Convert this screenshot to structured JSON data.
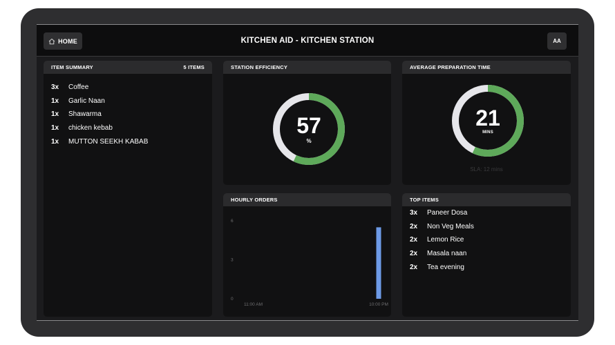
{
  "header": {
    "home_label": "HOME",
    "title": "KITCHEN AID - KITCHEN STATION",
    "font_size_label": "AA"
  },
  "item_summary": {
    "title": "ITEM SUMMARY",
    "count_label": "5 ITEMS",
    "items": [
      {
        "qty": "3x",
        "name": "Coffee"
      },
      {
        "qty": "1x",
        "name": "Garlic Naan"
      },
      {
        "qty": "1x",
        "name": "Shawarma"
      },
      {
        "qty": "1x",
        "name": "chicken kebab"
      },
      {
        "qty": "1x",
        "name": "MUTTON SEEKH KABAB"
      }
    ]
  },
  "station_efficiency": {
    "title": "STATION EFFICIENCY",
    "value": "57",
    "unit": "%",
    "fraction": 0.57,
    "ring_color": "#5ea95a",
    "track_color": "#e6e6ea"
  },
  "avg_prep_time": {
    "title": "AVERAGE PREPARATION TIME",
    "value": "21",
    "unit": "MINS",
    "fraction": 0.57,
    "sla_label": "SLA: 12 mins",
    "ring_color": "#5ea95a",
    "track_color": "#e6e6ea"
  },
  "hourly_orders": {
    "title": "HOURLY ORDERS"
  },
  "top_items": {
    "title": "TOP ITEMS",
    "items": [
      {
        "qty": "3x",
        "name": "Paneer Dosa"
      },
      {
        "qty": "2x",
        "name": "Non Veg Meals"
      },
      {
        "qty": "2x",
        "name": "Lemon Rice"
      },
      {
        "qty": "2x",
        "name": "Masala naan"
      },
      {
        "qty": "2x",
        "name": "Tea evening"
      }
    ]
  },
  "chart_data": {
    "type": "bar",
    "title": "HOURLY ORDERS",
    "x_tick_labels": [
      "11:00 AM",
      "10:00 PM"
    ],
    "y_ticks": [
      0,
      3,
      6
    ],
    "ylim": [
      0,
      6
    ],
    "x_start_hour": 11,
    "x_end_hour": 22,
    "series": [
      {
        "hours": [
          22
        ],
        "values": [
          5.5
        ],
        "color": "#6d9ae6"
      }
    ],
    "grid": false
  }
}
